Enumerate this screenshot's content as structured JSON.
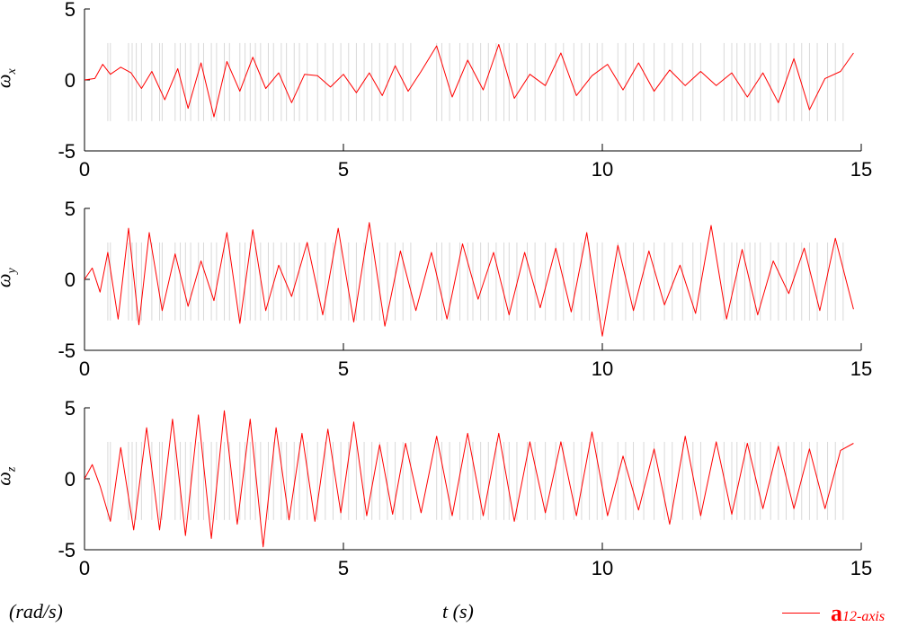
{
  "colors": {
    "signal": "#ff0000",
    "contact_lines": "#d9d9d9",
    "axis": "#000000"
  },
  "footer": {
    "unit": "(rad/s)",
    "xlabel": "t (s)"
  },
  "legend": {
    "main": "a",
    "sub": "12-axis"
  },
  "panels": [
    {
      "label_main": "ω",
      "label_sub": "x"
    },
    {
      "label_main": "ω",
      "label_sub": "y"
    },
    {
      "label_main": "ω",
      "label_sub": "z"
    }
  ],
  "chart_data": [
    {
      "type": "line",
      "xlim": [
        0,
        15
      ],
      "ylim": [
        -5,
        5
      ],
      "xticks": [
        0,
        5,
        10,
        15
      ],
      "yticks": [
        -5,
        0,
        5
      ],
      "ylabel": "ωx",
      "xlabel": "",
      "grid": false,
      "series": [
        {
          "name": "a12-axis",
          "x": [
            0,
            0.2,
            0.35,
            0.5,
            0.7,
            0.9,
            1.1,
            1.3,
            1.55,
            1.8,
            2.0,
            2.25,
            2.5,
            2.75,
            3.0,
            3.25,
            3.5,
            3.75,
            4.0,
            4.25,
            4.5,
            4.75,
            5.0,
            5.25,
            5.5,
            5.75,
            6.0,
            6.25,
            6.5,
            6.8,
            7.1,
            7.4,
            7.7,
            8.0,
            8.3,
            8.6,
            8.9,
            9.2,
            9.5,
            9.8,
            10.1,
            10.4,
            10.7,
            11.0,
            11.3,
            11.6,
            11.9,
            12.2,
            12.5,
            12.8,
            13.1,
            13.4,
            13.7,
            14.0,
            14.3,
            14.6,
            14.85
          ],
          "y": [
            0,
            0.1,
            1.1,
            0.4,
            0.9,
            0.5,
            -0.6,
            0.6,
            -1.4,
            0.8,
            -2.0,
            1.2,
            -2.6,
            1.3,
            -0.8,
            1.6,
            -0.6,
            0.5,
            -1.6,
            0.4,
            0.3,
            -0.5,
            0.4,
            -0.9,
            0.5,
            -1.1,
            1.0,
            -0.8,
            0.6,
            2.4,
            -1.2,
            1.4,
            -0.7,
            2.5,
            -1.3,
            0.4,
            -0.4,
            1.9,
            -1.1,
            0.3,
            1.1,
            -0.7,
            1.2,
            -0.8,
            0.7,
            -0.4,
            0.6,
            -0.4,
            0.5,
            -1.2,
            0.5,
            -1.6,
            1.5,
            -2.1,
            0.1,
            0.6,
            1.9
          ]
        }
      ]
    },
    {
      "type": "line",
      "xlim": [
        0,
        15
      ],
      "ylim": [
        -5,
        5
      ],
      "xticks": [
        0,
        5,
        10,
        15
      ],
      "yticks": [
        -5,
        0,
        5
      ],
      "ylabel": "ωy",
      "xlabel": "",
      "grid": false,
      "series": [
        {
          "name": "a12-axis",
          "x": [
            0,
            0.15,
            0.3,
            0.45,
            0.65,
            0.85,
            1.05,
            1.25,
            1.5,
            1.75,
            2.0,
            2.25,
            2.5,
            2.75,
            3.0,
            3.25,
            3.5,
            3.75,
            4.0,
            4.3,
            4.6,
            4.9,
            5.2,
            5.5,
            5.8,
            6.1,
            6.4,
            6.7,
            7.0,
            7.3,
            7.6,
            7.9,
            8.2,
            8.5,
            8.8,
            9.1,
            9.4,
            9.7,
            10.0,
            10.3,
            10.6,
            10.9,
            11.2,
            11.5,
            11.8,
            12.1,
            12.4,
            12.7,
            13.0,
            13.3,
            13.6,
            13.9,
            14.2,
            14.5,
            14.85
          ],
          "y": [
            0,
            0.8,
            -0.9,
            1.9,
            -2.8,
            3.6,
            -3.2,
            3.3,
            -2.2,
            1.8,
            -1.9,
            1.3,
            -1.5,
            3.3,
            -3.1,
            3.5,
            -2.2,
            1.0,
            -1.2,
            2.6,
            -2.5,
            3.6,
            -3.0,
            4.0,
            -3.3,
            2.0,
            -2.2,
            1.9,
            -2.8,
            2.5,
            -1.4,
            1.9,
            -2.5,
            1.9,
            -2.0,
            2.2,
            -2.3,
            3.3,
            -4.0,
            2.4,
            -2.2,
            2.0,
            -1.8,
            1.0,
            -2.4,
            3.8,
            -2.8,
            2.1,
            -2.5,
            1.3,
            -1.0,
            2.2,
            -2.2,
            2.9,
            -2.1
          ]
        }
      ]
    },
    {
      "type": "line",
      "xlim": [
        0,
        15
      ],
      "ylim": [
        -5,
        5
      ],
      "xticks": [
        0,
        5,
        10,
        15
      ],
      "yticks": [
        -5,
        0,
        5
      ],
      "ylabel": "ωz",
      "xlabel": "",
      "grid": false,
      "series": [
        {
          "name": "a12-axis",
          "x": [
            0,
            0.15,
            0.3,
            0.5,
            0.7,
            0.95,
            1.2,
            1.45,
            1.7,
            1.95,
            2.2,
            2.45,
            2.7,
            2.95,
            3.2,
            3.45,
            3.7,
            3.95,
            4.2,
            4.45,
            4.7,
            4.95,
            5.2,
            5.45,
            5.7,
            5.95,
            6.2,
            6.5,
            6.8,
            7.1,
            7.4,
            7.7,
            8.0,
            8.3,
            8.6,
            8.9,
            9.2,
            9.5,
            9.8,
            10.1,
            10.4,
            10.7,
            11.0,
            11.3,
            11.6,
            11.9,
            12.2,
            12.5,
            12.8,
            13.1,
            13.4,
            13.7,
            14.0,
            14.3,
            14.6,
            14.85
          ],
          "y": [
            0,
            1.0,
            -0.5,
            -3.0,
            2.2,
            -3.6,
            3.6,
            -3.6,
            4.2,
            -4.0,
            4.5,
            -4.2,
            4.8,
            -3.2,
            4.2,
            -4.8,
            3.6,
            -2.9,
            3.2,
            -3.0,
            3.5,
            -2.4,
            4.0,
            -2.6,
            2.4,
            -2.5,
            2.5,
            -2.4,
            3.0,
            -2.6,
            3.2,
            -2.6,
            3.2,
            -3.0,
            2.6,
            -2.4,
            2.6,
            -2.6,
            3.3,
            -2.6,
            1.6,
            -2.2,
            2.1,
            -3.2,
            3.0,
            -2.6,
            2.6,
            -2.5,
            2.5,
            -2.1,
            2.3,
            -2.1,
            2.1,
            -2.1,
            2.0,
            2.5
          ]
        }
      ]
    }
  ]
}
